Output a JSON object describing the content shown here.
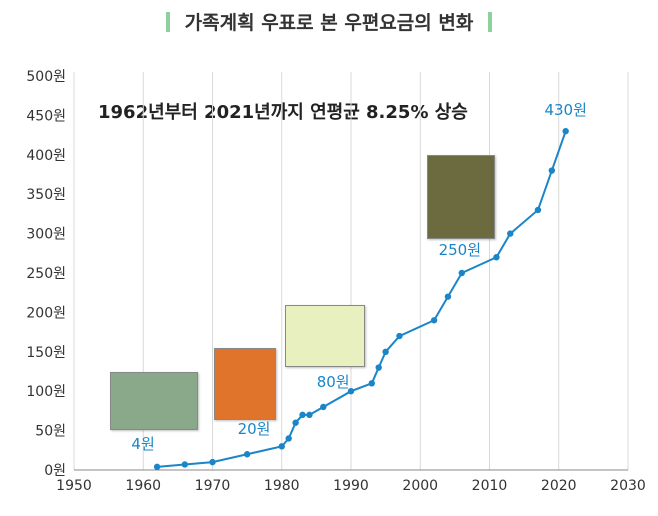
{
  "title": "가족계획 우표로 본 우편요금의 변화",
  "subtitle": "1962년부터 2021년까지 연평균 8.25% 상승",
  "colors": {
    "line": "#1a86c8",
    "accent_bar": "#8fd19e",
    "grid": "#d9d9d9",
    "label": "#1a86c8"
  },
  "stamps": [
    {
      "name": "family-planning-stamp-1962",
      "value_text": "4원"
    },
    {
      "name": "family-planning-stamp-1976",
      "value_text": "20"
    },
    {
      "name": "family-planning-stamp-1988",
      "value_text": "80"
    },
    {
      "name": "family-planning-stamp-2005",
      "value_text": "250"
    }
  ],
  "chart_data": {
    "type": "line",
    "title": "가족계획 우표로 본 우편요금의 변화",
    "subtitle": "1962년부터 2021년까지 연평균 8.25% 상승",
    "xlabel": "",
    "ylabel": "",
    "xlim": [
      1950,
      2030
    ],
    "ylim": [
      0,
      500
    ],
    "x_ticks": [
      1950,
      1960,
      1970,
      1980,
      1990,
      2000,
      2010,
      2020,
      2030
    ],
    "y_ticks": [
      0,
      50,
      100,
      150,
      200,
      250,
      300,
      350,
      400,
      450,
      500
    ],
    "y_tick_labels": [
      "0원",
      "50원",
      "100원",
      "150원",
      "200원",
      "250원",
      "300원",
      "350원",
      "400원",
      "450원",
      "500원"
    ],
    "grid": {
      "x": true,
      "y": false
    },
    "series": [
      {
        "x": [
          1962,
          1966,
          1970,
          1975,
          1980,
          1981,
          1982,
          1983,
          1984,
          1986,
          1990,
          1993,
          1994,
          1995,
          1997,
          2002,
          2004,
          2006,
          2011,
          2013,
          2017,
          2019,
          2021
        ],
        "values": [
          4,
          7,
          10,
          20,
          30,
          40,
          60,
          70,
          70,
          80,
          100,
          110,
          130,
          150,
          170,
          190,
          220,
          250,
          270,
          300,
          330,
          380,
          430
        ]
      }
    ],
    "annotations": [
      {
        "x": 1962,
        "y": 4,
        "text": "4원"
      },
      {
        "x": 1976,
        "y": 20,
        "text": "20원"
      },
      {
        "x": 1988,
        "y": 80,
        "text": "80원"
      },
      {
        "x": 2006,
        "y": 250,
        "text": "250원"
      },
      {
        "x": 2021,
        "y": 430,
        "text": "430원"
      }
    ]
  }
}
